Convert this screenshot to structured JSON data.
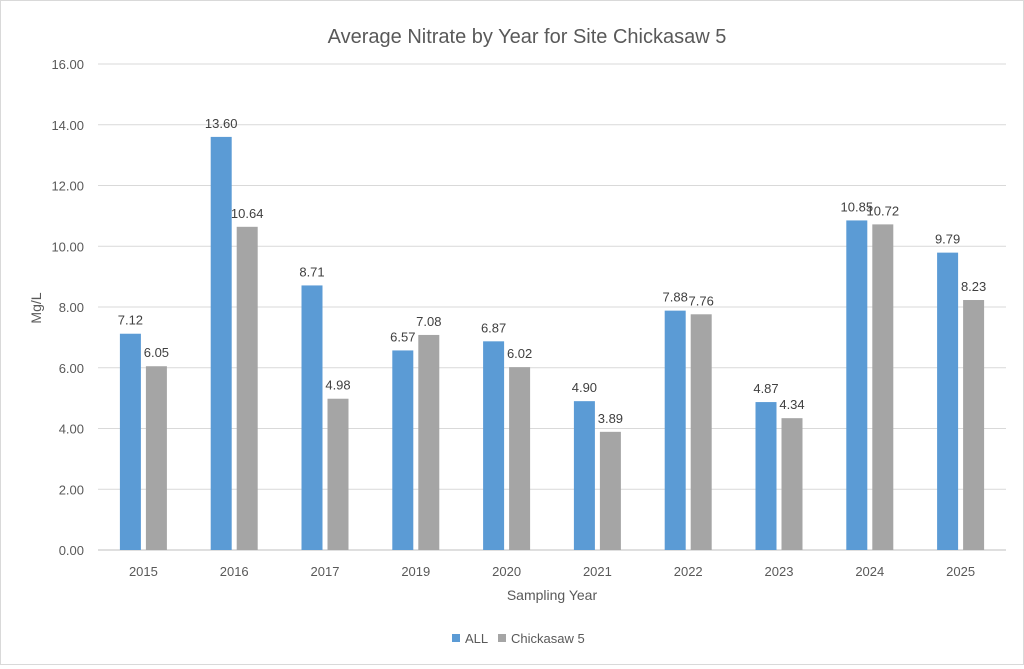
{
  "chart_data": {
    "type": "bar",
    "title": "Average Nitrate by Year for Site Chickasaw 5",
    "xlabel": "Sampling Year",
    "ylabel": "Mg/L",
    "categories": [
      "2015",
      "2016",
      "2017",
      "2019",
      "2020",
      "2021",
      "2022",
      "2023",
      "2024",
      "2025"
    ],
    "series": [
      {
        "name": "ALL",
        "color": "#5b9bd5",
        "values": [
          7.12,
          13.6,
          8.71,
          6.57,
          6.87,
          4.9,
          7.88,
          4.87,
          10.85,
          9.79
        ]
      },
      {
        "name": "Chickasaw 5",
        "color": "#a5a5a5",
        "values": [
          6.05,
          10.64,
          4.98,
          7.08,
          6.02,
          3.89,
          7.76,
          4.34,
          10.72,
          8.23
        ]
      }
    ],
    "ylim": [
      0,
      16
    ],
    "yticks": [
      "0.00",
      "2.00",
      "4.00",
      "6.00",
      "8.00",
      "10.00",
      "12.00",
      "14.00",
      "16.00"
    ],
    "value_decimals": 2,
    "grid": true,
    "legend_position": "bottom"
  }
}
